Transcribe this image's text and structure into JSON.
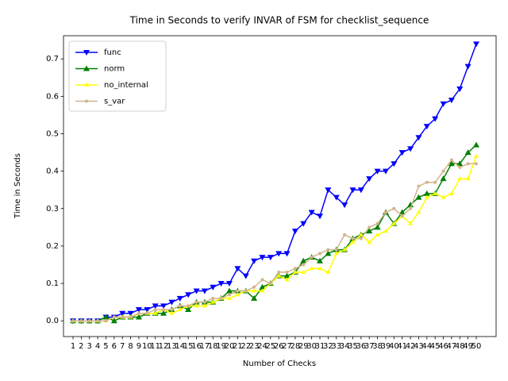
{
  "chart_data": {
    "type": "line",
    "title": "Time in Seconds to verify INVAR of FSM for checklist_sequence",
    "x_label": "Number of Checks",
    "y_label": "Time in Seconds",
    "categories": [
      1,
      2,
      3,
      4,
      5,
      6,
      7,
      8,
      9,
      10,
      11,
      12,
      13,
      14,
      15,
      16,
      17,
      18,
      19,
      20,
      21,
      22,
      23,
      24,
      25,
      26,
      27,
      28,
      29,
      30,
      31,
      32,
      33,
      34,
      35,
      36,
      37,
      38,
      39,
      40,
      41,
      42,
      43,
      44,
      45,
      46,
      47,
      48,
      49,
      50
    ],
    "ylim": [
      -0.042,
      0.762
    ],
    "yticks": [
      {
        "value": 0,
        "label": "0.0"
      },
      0.1,
      0.2,
      0.3,
      0.4,
      0.5,
      0.6,
      0.7
    ],
    "legend": "upper left",
    "series": [
      {
        "name": "func",
        "color": "#0000ff",
        "marker": "triangle-down",
        "values": [
          0,
          0,
          0,
          0,
          0.01,
          0.01,
          0.02,
          0.02,
          0.03,
          0.03,
          0.04,
          0.04,
          0.05,
          0.06,
          0.07,
          0.08,
          0.08,
          0.09,
          0.1,
          0.1,
          0.14,
          0.12,
          0.16,
          0.17,
          0.17,
          0.18,
          0.18,
          0.24,
          0.26,
          0.29,
          0.28,
          0.35,
          0.33,
          0.31,
          0.35,
          0.35,
          0.38,
          0.4,
          0.4,
          0.42,
          0.45,
          0.46,
          0.49,
          0.52,
          0.54,
          0.58,
          0.59,
          0.62,
          0.68,
          0.74
        ]
      },
      {
        "name": "norm",
        "color": "#008000",
        "marker": "triangle-up",
        "values": [
          0,
          0,
          0,
          0,
          0.01,
          0,
          0.01,
          0.01,
          0.01,
          0.02,
          0.02,
          0.02,
          0.03,
          0.04,
          0.03,
          0.05,
          0.05,
          0.05,
          0.06,
          0.08,
          0.08,
          0.08,
          0.06,
          0.09,
          0.1,
          0.12,
          0.12,
          0.13,
          0.16,
          0.17,
          0.16,
          0.18,
          0.19,
          0.19,
          0.22,
          0.23,
          0.24,
          0.25,
          0.29,
          0.26,
          0.29,
          0.31,
          0.33,
          0.34,
          0.34,
          0.38,
          0.42,
          0.42,
          0.45,
          0.47
        ]
      },
      {
        "name": "no_internal",
        "color": "#ffff00",
        "marker": "small-triangle",
        "values": [
          0,
          0,
          0,
          0,
          0,
          0.01,
          0.01,
          0.01,
          0.02,
          0.02,
          0.02,
          0.03,
          0.02,
          0.03,
          0.04,
          0.04,
          0.04,
          0.05,
          0.06,
          0.06,
          0.07,
          0.08,
          0.08,
          0.08,
          0.1,
          0.12,
          0.11,
          0.13,
          0.13,
          0.14,
          0.14,
          0.13,
          0.18,
          0.19,
          0.21,
          0.23,
          0.21,
          0.23,
          0.24,
          0.26,
          0.28,
          0.26,
          0.29,
          0.33,
          0.34,
          0.33,
          0.34,
          0.38,
          0.38,
          0.44
        ]
      },
      {
        "name": "s_var",
        "color": "#d2b48c",
        "marker": "dot",
        "values": [
          0,
          0,
          0,
          0,
          0,
          0.01,
          0.01,
          0.01,
          0.02,
          0.02,
          0.03,
          0.03,
          0.03,
          0.04,
          0.04,
          0.05,
          0.05,
          0.06,
          0.06,
          0.07,
          0.08,
          0.08,
          0.09,
          0.11,
          0.1,
          0.13,
          0.13,
          0.14,
          0.15,
          0.17,
          0.18,
          0.19,
          0.19,
          0.23,
          0.22,
          0.22,
          0.25,
          0.26,
          0.29,
          0.3,
          0.28,
          0.3,
          0.36,
          0.37,
          0.37,
          0.4,
          0.43,
          0.41,
          0.42,
          0.42
        ]
      }
    ]
  }
}
